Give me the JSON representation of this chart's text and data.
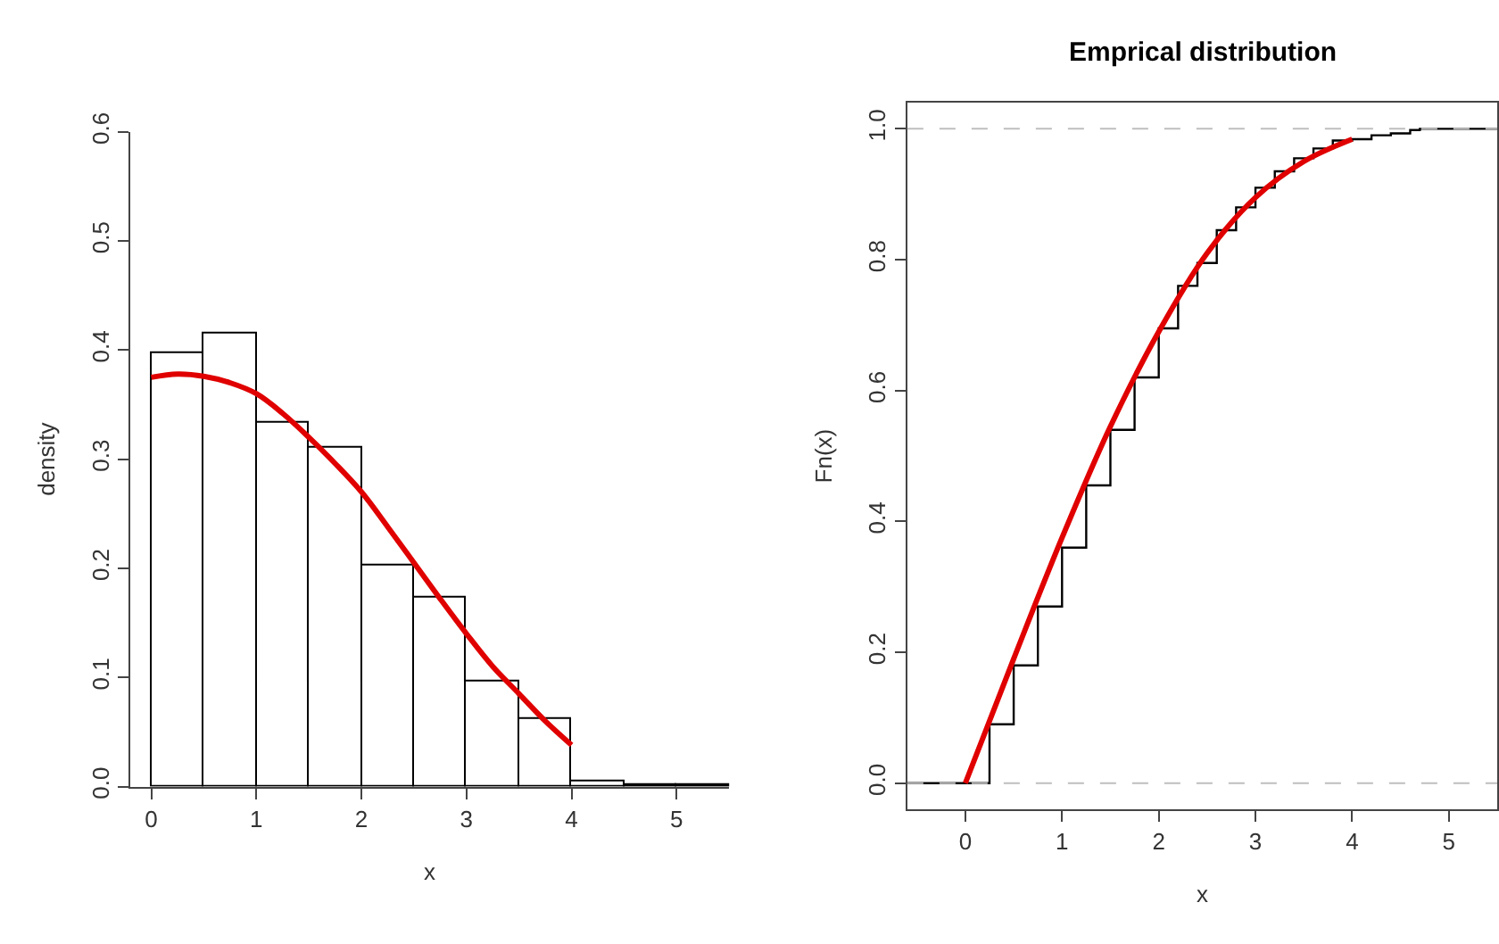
{
  "chart_data": [
    {
      "type": "histogram",
      "xlabel": "x",
      "ylabel": "density",
      "bins": [
        0,
        0.5,
        1,
        1.5,
        2,
        2.5,
        3,
        3.5,
        4,
        4.5,
        5,
        5.5
      ],
      "xlim": [
        -0.2,
        5.5
      ],
      "xticks": [
        0,
        1,
        2,
        3,
        4,
        5
      ],
      "ylim": [
        0,
        0.6
      ],
      "yticks": [
        {
          "value": 0,
          "label": "0.0"
        },
        {
          "value": 0.1,
          "label": "0.1"
        },
        {
          "value": 0.2,
          "label": "0.2"
        },
        {
          "value": 0.3,
          "label": "0.3"
        },
        {
          "value": 0.4,
          "label": "0.4"
        },
        {
          "value": 0.5,
          "label": "0.5"
        },
        {
          "value": 0.6,
          "label": "0.6"
        }
      ],
      "series": [
        {
          "type": "histogram",
          "color": "#ffffff",
          "values": [
            0.398,
            0.416,
            0.334,
            0.311,
            0.202,
            0.173,
            0.096,
            0.062,
            0.004,
            0.002,
            0.002
          ]
        },
        {
          "type": "line",
          "color": "#e00000",
          "x": [
            0,
            0.25,
            0.5,
            0.75,
            1,
            1.25,
            1.5,
            1.75,
            2,
            2.25,
            2.5,
            2.75,
            3,
            3.25,
            3.5,
            3.75,
            4
          ],
          "values": [
            0.375,
            0.378,
            0.376,
            0.37,
            0.36,
            0.342,
            0.32,
            0.296,
            0.27,
            0.238,
            0.205,
            0.172,
            0.14,
            0.11,
            0.085,
            0.06,
            0.038
          ]
        }
      ]
    },
    {
      "type": "step",
      "title": "Emprical distribution",
      "xlabel": "x",
      "ylabel": "Fn(x)",
      "xlim": [
        -0.6,
        5.5
      ],
      "xticks": [
        0,
        1,
        2,
        3,
        4,
        5
      ],
      "ylim": [
        -0.04,
        1.04
      ],
      "yticks": [
        {
          "value": 0,
          "label": "0.0"
        },
        {
          "value": 0.2,
          "label": "0.2"
        },
        {
          "value": 0.4,
          "label": "0.4"
        },
        {
          "value": 0.6,
          "label": "0.6"
        },
        {
          "value": 0.8,
          "label": "0.8"
        },
        {
          "value": 1,
          "label": "1.0"
        }
      ],
      "ref_lines": [
        {
          "axis": "y",
          "value": 0,
          "color": "#bebebe",
          "line_style": "dashed"
        },
        {
          "axis": "y",
          "value": 1,
          "color": "#bebebe",
          "line_style": "dashed"
        }
      ],
      "series": [
        {
          "type": "step",
          "color": "#000000",
          "x": [
            -0.6,
            0,
            0.25,
            0.5,
            0.75,
            1,
            1.25,
            1.5,
            1.75,
            2,
            2.2,
            2.4,
            2.6,
            2.8,
            3,
            3.2,
            3.4,
            3.6,
            3.8,
            4,
            4.2,
            4.4,
            4.6,
            4.7,
            5.5
          ],
          "values": [
            0,
            0,
            0.09,
            0.18,
            0.27,
            0.36,
            0.455,
            0.54,
            0.62,
            0.695,
            0.76,
            0.795,
            0.845,
            0.88,
            0.91,
            0.935,
            0.955,
            0.97,
            0.982,
            0.984,
            0.99,
            0.993,
            0.998,
            1,
            1
          ]
        },
        {
          "type": "line",
          "color": "#e00000",
          "x": [
            0,
            0.5,
            1,
            1.5,
            2,
            2.5,
            3,
            3.5,
            4
          ],
          "values": [
            0,
            0.19,
            0.375,
            0.545,
            0.69,
            0.81,
            0.895,
            0.95,
            0.984
          ]
        }
      ]
    }
  ]
}
